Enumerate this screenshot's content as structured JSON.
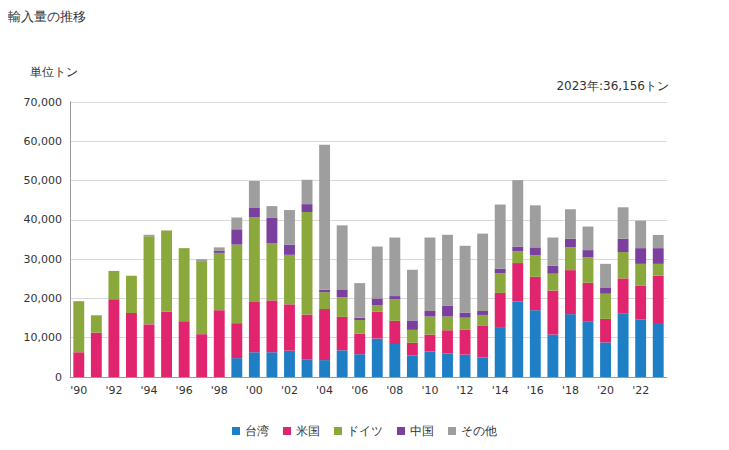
{
  "chart_data": {
    "type": "bar",
    "title": "輸入量の推移",
    "ylabel": "単位トン",
    "annotations": [
      "2023年:36,156トン"
    ],
    "categories": [
      "'90",
      null,
      "'92",
      null,
      "'94",
      null,
      "'96",
      null,
      "'98",
      null,
      "'00",
      null,
      "'02",
      null,
      "'04",
      null,
      "'06",
      null,
      "'08",
      null,
      "'10",
      null,
      "'12",
      null,
      "'14",
      null,
      "'16",
      null,
      "'18",
      null,
      "'20",
      null,
      "'22",
      null
    ],
    "stacked": true,
    "grid": true,
    "legend": "bottom",
    "ylim": [
      0,
      70000
    ],
    "yticks": [
      0,
      {
        "value": 10000,
        "label": "10,000"
      },
      {
        "value": 20000,
        "label": "20,000"
      },
      {
        "value": 30000,
        "label": "30,000"
      },
      {
        "value": 40000,
        "label": "40,000"
      },
      {
        "value": 50000,
        "label": "50,000"
      },
      {
        "value": 60000,
        "label": "60,000"
      },
      {
        "value": 70000,
        "label": "70,000"
      }
    ],
    "series": [
      {
        "name": "台湾",
        "color": "#1f7fc4",
        "values": [
          0,
          0,
          0,
          0,
          0,
          0,
          0,
          0,
          0,
          4800,
          6300,
          6300,
          6700,
          4400,
          4300,
          6800,
          5800,
          9800,
          8400,
          5500,
          6500,
          6000,
          5700,
          5000,
          12700,
          19200,
          17000,
          10800,
          16000,
          14200,
          8800,
          16100,
          14600,
          13500
        ]
      },
      {
        "name": "米国",
        "color": "#e0246e",
        "values": [
          6300,
          11300,
          19800,
          16300,
          13400,
          16600,
          14200,
          10900,
          17000,
          8900,
          12800,
          13200,
          11800,
          11500,
          13000,
          8500,
          5200,
          6800,
          5900,
          3200,
          4300,
          5900,
          6400,
          8000,
          8700,
          9800,
          8500,
          11200,
          11200,
          9800,
          6000,
          9000,
          8600,
          12300
        ]
      },
      {
        "name": "ドイツ",
        "color": "#8aa83c",
        "values": [
          13000,
          4400,
          7200,
          9500,
          22400,
          20700,
          18600,
          18600,
          14600,
          20000,
          21500,
          14500,
          12600,
          26100,
          4300,
          5000,
          3500,
          1700,
          5500,
          3300,
          4600,
          3500,
          3000,
          2800,
          5000,
          3000,
          5500,
          4300,
          5800,
          6500,
          6400,
          6700,
          5600,
          3000
        ]
      },
      {
        "name": "中国",
        "color": "#7b3f9e",
        "values": [
          0,
          0,
          0,
          0,
          0,
          0,
          0,
          0,
          500,
          3900,
          2400,
          6500,
          2600,
          2000,
          600,
          2000,
          600,
          1700,
          800,
          2400,
          1400,
          2800,
          1300,
          1000,
          1200,
          1200,
          2000,
          2000,
          2200,
          1800,
          1600,
          3400,
          4000,
          4000
        ]
      },
      {
        "name": "その他",
        "color": "#9e9e9e",
        "values": [
          0,
          0,
          0,
          0,
          400,
          0,
          0,
          500,
          900,
          3000,
          6900,
          3000,
          8800,
          6200,
          36900,
          16300,
          8800,
          13200,
          14900,
          12900,
          18700,
          18000,
          17000,
          19700,
          16300,
          16900,
          10700,
          7200,
          7500,
          6000,
          6000,
          8000,
          7000,
          3356
        ]
      }
    ]
  }
}
